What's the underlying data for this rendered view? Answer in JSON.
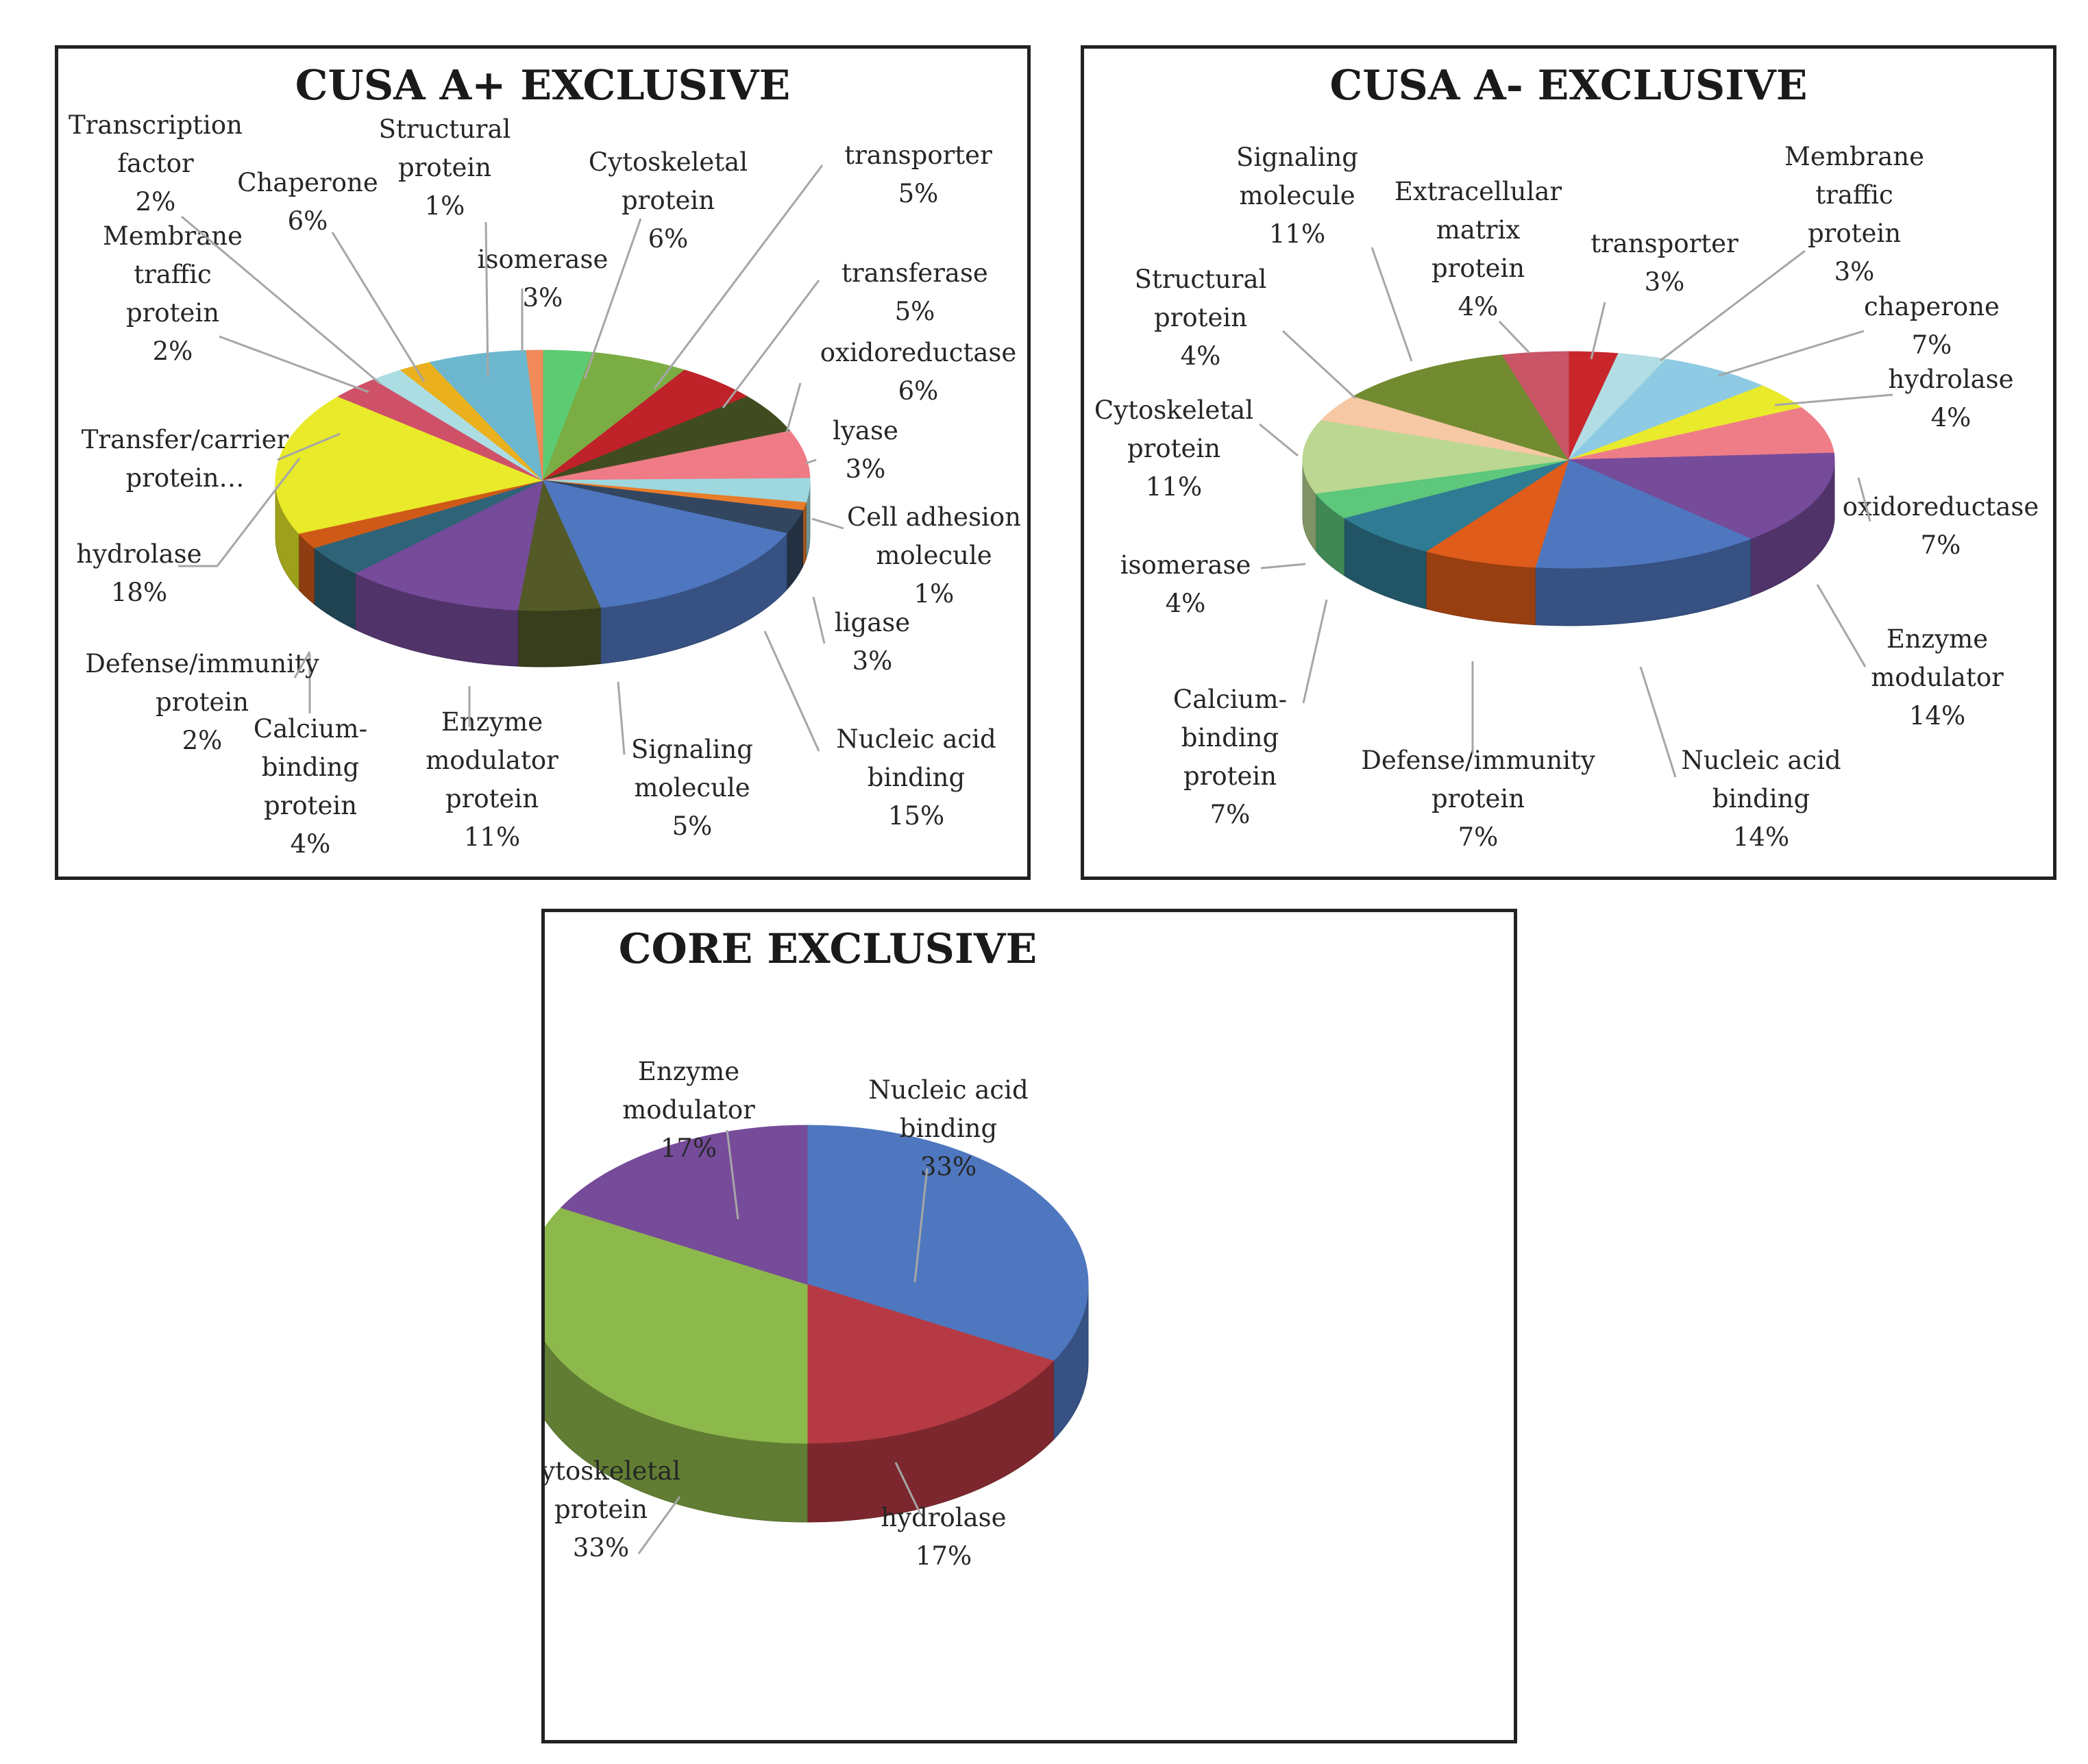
{
  "chart_data": [
    {
      "type": "pie",
      "title": "CUSA A+ EXCLUSIVE",
      "slices": [
        {
          "label": [
            "isomerase",
            "3%"
          ],
          "value": 3,
          "color": "#5dcb72"
        },
        {
          "label": [
            "Cytoskeletal",
            "protein",
            "6%"
          ],
          "value": 6,
          "color": "#7bad45"
        },
        {
          "label": [
            "transporter",
            "5%"
          ],
          "value": 5,
          "color": "#bf2229"
        },
        {
          "label": [
            "transferase",
            "5%"
          ],
          "value": 5,
          "color": "#404c1f"
        },
        {
          "label": [
            "oxidoreductase",
            "6%"
          ],
          "value": 6,
          "color": "#ee7b86"
        },
        {
          "label": [
            "lyase",
            "3%"
          ],
          "value": 3,
          "color": "#9ed8de"
        },
        {
          "label": [
            "Cell adhesion",
            "molecule",
            "1%"
          ],
          "value": 1,
          "color": "#e87c2a"
        },
        {
          "label": [
            "ligase",
            "3%"
          ],
          "value": 3,
          "color": "#324660"
        },
        {
          "label": [
            "Nucleic acid",
            "binding",
            "15%"
          ],
          "value": 15,
          "color": "#4f77bf"
        },
        {
          "label": [
            "Signaling",
            "molecule",
            "5%"
          ],
          "value": 5,
          "color": "#535a27"
        },
        {
          "label": [
            "Enzyme",
            "modulator",
            "protein",
            "11%"
          ],
          "value": 11,
          "color": "#764b9a"
        },
        {
          "label": [
            "Calcium-",
            "binding",
            "protein",
            "4%"
          ],
          "value": 4,
          "color": "#2f6378"
        },
        {
          "label": [
            "Defense/immunity",
            "protein",
            "2%"
          ],
          "value": 2,
          "color": "#cf5a18"
        },
        {
          "label": [
            "hydrolase",
            "18%"
          ],
          "value": 18,
          "color": "#e9ea29"
        },
        {
          "label": [
            "Transfer/carrier",
            "protein…"
          ],
          "value": 3,
          "color": "#cf5168"
        },
        {
          "label": [
            "Membrane",
            "traffic",
            "protein",
            "2%"
          ],
          "value": 2,
          "color": "#acdde3"
        },
        {
          "label": [
            "Transcription",
            "factor",
            "2%"
          ],
          "value": 2,
          "color": "#eab01e"
        },
        {
          "label": [
            "Chaperone",
            "6%"
          ],
          "value": 6,
          "color": "#6cb7ce"
        },
        {
          "label": [
            "Structural",
            "protein",
            "1%"
          ],
          "value": 1,
          "color": "#f08a58"
        }
      ]
    },
    {
      "type": "pie",
      "title": "CUSA A- EXCLUSIVE",
      "slices": [
        {
          "label": [
            "transporter",
            "3%"
          ],
          "value": 3,
          "color": "#c9262c"
        },
        {
          "label": [
            "Membrane",
            "traffic",
            "protein",
            "3%"
          ],
          "value": 3,
          "color": "#b2dde4"
        },
        {
          "label": [
            "chaperone",
            "7%"
          ],
          "value": 7,
          "color": "#8ecae3"
        },
        {
          "label": [
            "hydrolase",
            "4%"
          ],
          "value": 4,
          "color": "#e9ea2c"
        },
        {
          "label": [
            "oxidoreductase",
            "7%"
          ],
          "value": 7,
          "color": "#ee7d88"
        },
        {
          "label": [
            "Enzyme",
            "modulator",
            "14%"
          ],
          "value": 14,
          "color": "#764b9a"
        },
        {
          "label": [
            "Nucleic acid",
            "binding",
            "14%"
          ],
          "value": 14,
          "color": "#4f77bf"
        },
        {
          "label": [
            "Defense/immunity",
            "protein",
            "7%"
          ],
          "value": 7,
          "color": "#df5c1a"
        },
        {
          "label": [
            "Calcium-",
            "binding",
            "protein",
            "7%"
          ],
          "value": 7,
          "color": "#307b94"
        },
        {
          "label": [
            "isomerase",
            "4%"
          ],
          "value": 4,
          "color": "#5dc77b"
        },
        {
          "label": [
            "Cytoskeletal",
            "protein",
            "11%"
          ],
          "value": 11,
          "color": "#bbd791"
        },
        {
          "label": [
            "Structural",
            "protein",
            "4%"
          ],
          "value": 4,
          "color": "#f6c8a4"
        },
        {
          "label": [
            "Signaling",
            "molecule",
            "11%"
          ],
          "value": 11,
          "color": "#728a30"
        },
        {
          "label": [
            "Extracellular",
            "matrix",
            "protein",
            "4%"
          ],
          "value": 4,
          "color": "#c95567"
        }
      ]
    },
    {
      "type": "pie",
      "title": "CORE EXCLUSIVE",
      "slices": [
        {
          "label": [
            "Nucleic acid",
            "binding",
            "33%"
          ],
          "value": 33,
          "color": "#4f77bf"
        },
        {
          "label": [
            "hydrolase",
            "17%"
          ],
          "value": 17,
          "color": "#b63a43"
        },
        {
          "label": [
            "Cytoskeletal",
            "protein",
            "33%"
          ],
          "value": 33,
          "color": "#8db84b"
        },
        {
          "label": [
            "Enzyme",
            "modulator",
            "17%"
          ],
          "value": 17,
          "color": "#764b9a"
        }
      ]
    }
  ]
}
